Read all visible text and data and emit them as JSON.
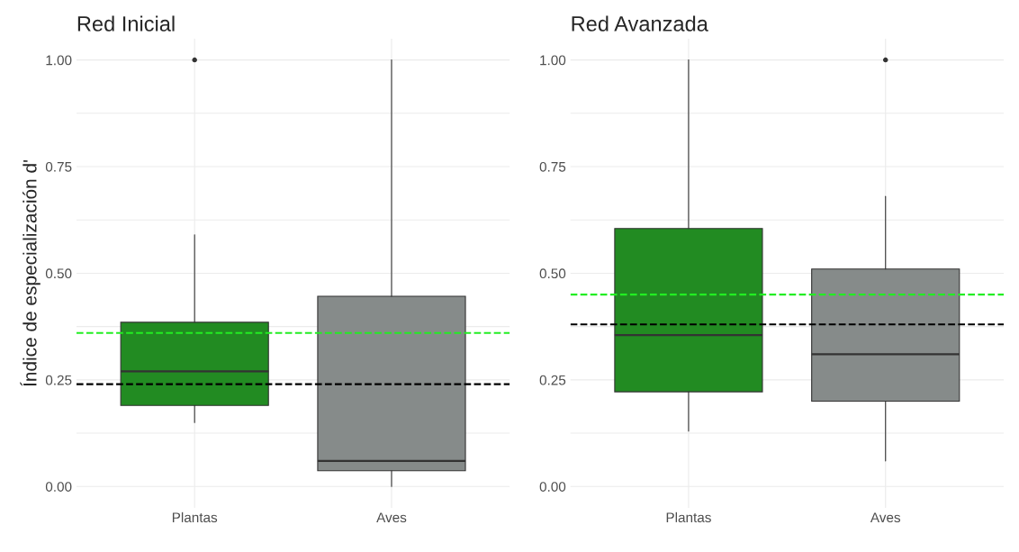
{
  "chart_data": [
    {
      "type": "box",
      "title": "Red Inicial",
      "ylabel": "Índice de especialización d'",
      "categories": [
        "Plantas",
        "Aves"
      ],
      "colors": [
        "#228b22",
        "#868b8a"
      ],
      "boxes": [
        {
          "low": 0.15,
          "q1": 0.19,
          "median": 0.27,
          "q3": 0.385,
          "high": 0.59,
          "outliers": [
            1.0
          ]
        },
        {
          "low": 0.0,
          "q1": 0.037,
          "median": 0.06,
          "q3": 0.446,
          "high": 1.0
        }
      ],
      "ylim": [
        -0.05,
        1.05
      ],
      "yticks": [
        {
          "value": 0,
          "label": "0.00"
        },
        {
          "value": 0.25,
          "label": "0.25"
        },
        {
          "value": 0.5,
          "label": "0.50"
        },
        {
          "value": 0.75,
          "label": "0.75"
        },
        {
          "value": 1,
          "label": "1.00"
        }
      ],
      "ref_lines": [
        {
          "axis": "y",
          "value": 0.36,
          "color": "#22ee22",
          "line_style": "dashed"
        },
        {
          "axis": "y",
          "value": 0.24,
          "color": "#000000",
          "line_style": "dashed"
        }
      ],
      "grid": true
    },
    {
      "type": "box",
      "title": "Red Avanzada",
      "categories": [
        "Plantas",
        "Aves"
      ],
      "colors": [
        "#228b22",
        "#868b8a"
      ],
      "boxes": [
        {
          "low": 0.13,
          "q1": 0.222,
          "median": 0.355,
          "q3": 0.605,
          "high": 1.0
        },
        {
          "low": 0.06,
          "q1": 0.2,
          "median": 0.31,
          "q3": 0.51,
          "high": 0.68,
          "outliers": [
            1.0
          ]
        }
      ],
      "ylim": [
        -0.05,
        1.05
      ],
      "yticks": [
        {
          "value": 0,
          "label": "0.00"
        },
        {
          "value": 0.25,
          "label": "0.25"
        },
        {
          "value": 0.5,
          "label": "0.50"
        },
        {
          "value": 0.75,
          "label": "0.75"
        },
        {
          "value": 1,
          "label": "1.00"
        }
      ],
      "ref_lines": [
        {
          "axis": "y",
          "value": 0.45,
          "color": "#22ee22",
          "line_style": "dashed"
        },
        {
          "axis": "y",
          "value": 0.38,
          "color": "#000000",
          "line_style": "dashed"
        }
      ],
      "grid": true
    }
  ]
}
